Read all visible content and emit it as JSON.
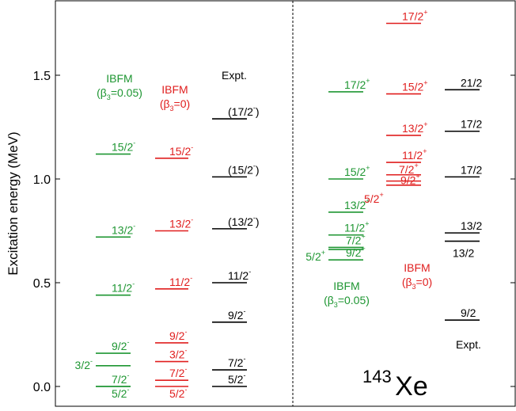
{
  "chart_data": {
    "type": "level-scheme",
    "ylabel": "Excitation energy (MeV)",
    "ylim": [
      -0.08,
      1.84
    ],
    "yticks": [
      0.0,
      0.5,
      1.0,
      1.5
    ],
    "ytick_labels": [
      "0.0",
      "0.5",
      "1.0",
      "1.5"
    ],
    "nucleus": {
      "mass": "143",
      "symbol": "Xe"
    },
    "colors": {
      "ibfm_005": "#1e9632",
      "ibfm_0": "#e01e1e",
      "expt": "#000000"
    },
    "panels": [
      {
        "name": "negative-parity",
        "columns": [
          {
            "id": "ibfm005",
            "header_line1": "IBFM",
            "header_line2_pre": "(β",
            "header_line2_sub": "3",
            "header_line2_post": "=0.05)",
            "levels": [
              {
                "spin": "5/2",
                "parity": "-",
                "energy": 0.0
              },
              {
                "spin": "7/2",
                "parity": "-",
                "energy": 0.0
              },
              {
                "spin": "3/2",
                "parity": "-",
                "energy": 0.1
              },
              {
                "spin": "9/2",
                "parity": "-",
                "energy": 0.16
              },
              {
                "spin": "11/2",
                "parity": "-",
                "energy": 0.44
              },
              {
                "spin": "13/2",
                "parity": "-",
                "energy": 0.72
              },
              {
                "spin": "15/2",
                "parity": "-",
                "energy": 1.12
              }
            ]
          },
          {
            "id": "ibfm0",
            "header_line1": "IBFM",
            "header_line2_pre": "(β",
            "header_line2_sub": "3",
            "header_line2_post": "=0)",
            "levels": [
              {
                "spin": "5/2",
                "parity": "-",
                "energy": 0.0
              },
              {
                "spin": "7/2",
                "parity": "-",
                "energy": 0.03
              },
              {
                "spin": "3/2",
                "parity": "-",
                "energy": 0.12
              },
              {
                "spin": "9/2",
                "parity": "-",
                "energy": 0.21
              },
              {
                "spin": "11/2",
                "parity": "-",
                "energy": 0.47
              },
              {
                "spin": "13/2",
                "parity": "-",
                "energy": 0.75
              },
              {
                "spin": "15/2",
                "parity": "-",
                "energy": 1.1
              }
            ]
          },
          {
            "id": "expt",
            "header_line1": "Expt.",
            "levels": [
              {
                "spin": "5/2",
                "parity": "-",
                "energy": 0.0
              },
              {
                "spin": "7/2",
                "parity": "-",
                "energy": 0.08
              },
              {
                "spin": "9/2",
                "parity": "-",
                "energy": 0.31
              },
              {
                "spin": "11/2",
                "parity": "-",
                "energy": 0.5
              },
              {
                "spin": "(13/2",
                "parity": "-",
                "post": ")",
                "energy": 0.76
              },
              {
                "spin": "(15/2",
                "parity": "-",
                "post": ")",
                "energy": 1.01
              },
              {
                "spin": "(17/2",
                "parity": "-",
                "post": ")",
                "energy": 1.29
              }
            ]
          }
        ]
      },
      {
        "name": "positive-parity",
        "columns": [
          {
            "id": "ibfm005",
            "header_line1": "IBFM",
            "header_line2_pre": "(β",
            "header_line2_sub": "3",
            "header_line2_post": "=0.05)",
            "levels": [
              {
                "spin": "9/2",
                "parity": "+",
                "energy": 0.61
              },
              {
                "spin": "5/2",
                "parity": "+",
                "energy": 0.66
              },
              {
                "spin": "7/2",
                "parity": "+",
                "energy": 0.67
              },
              {
                "spin": "11/2",
                "parity": "+",
                "energy": 0.73
              },
              {
                "spin": "13/2",
                "parity": "+",
                "energy": 0.84
              },
              {
                "spin": "15/2",
                "parity": "+",
                "energy": 1.0
              },
              {
                "spin": "17/2",
                "parity": "+",
                "energy": 1.42
              }
            ]
          },
          {
            "id": "ibfm0",
            "header_line1": "IBFM",
            "header_line2_pre": "(β",
            "header_line2_sub": "3",
            "header_line2_post": "=0)",
            "levels": [
              {
                "spin": "5/2",
                "parity": "+",
                "energy": 0.97
              },
              {
                "spin": "9/2",
                "parity": "+",
                "energy": 0.99
              },
              {
                "spin": "7/2",
                "parity": "+",
                "energy": 1.02
              },
              {
                "spin": "11/2",
                "parity": "+",
                "energy": 1.08
              },
              {
                "spin": "13/2",
                "parity": "+",
                "energy": 1.21
              },
              {
                "spin": "15/2",
                "parity": "+",
                "energy": 1.41
              },
              {
                "spin": "17/2",
                "parity": "+",
                "energy": 1.75
              }
            ]
          },
          {
            "id": "expt",
            "header_line1": "Expt.",
            "levels": [
              {
                "spin": "9/2",
                "energy": 0.32
              },
              {
                "spin": "13/2",
                "energy": 0.7
              },
              {
                "spin": "13/2",
                "energy": 0.74
              },
              {
                "spin": "17/2",
                "energy": 1.01
              },
              {
                "spin": "17/2",
                "energy": 1.23
              },
              {
                "spin": "21/2",
                "energy": 1.43
              }
            ]
          }
        ]
      }
    ]
  }
}
